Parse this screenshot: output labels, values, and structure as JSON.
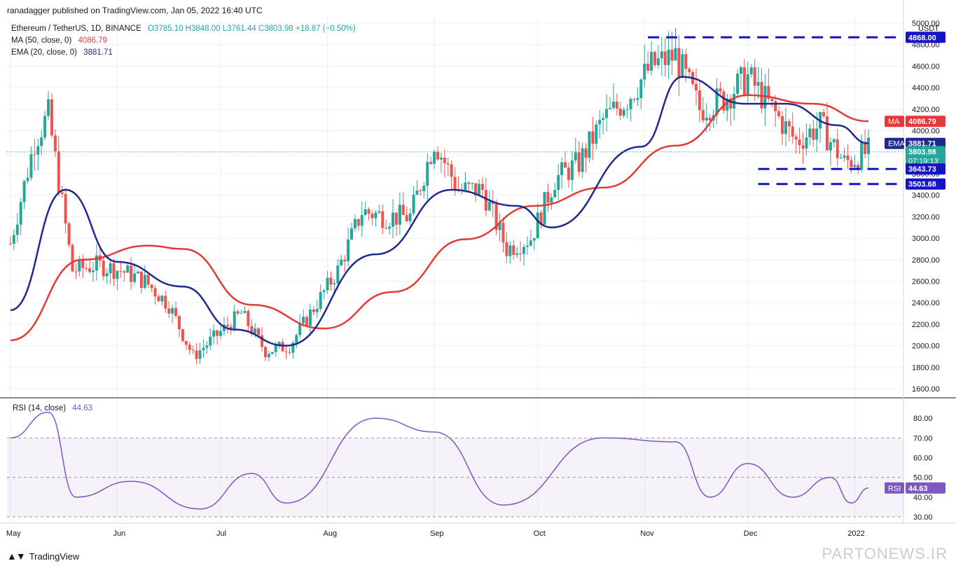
{
  "header": {
    "publisher_line": "ranadagger published on TradingView.com, Jan 05, 2022 16:40 UTC"
  },
  "legend": {
    "symbol": "Ethereum / TetherUS, 1D, BINANCE",
    "ohlc": "O3785.10  H3848.00  L3761.44  C3803.98  +18.87 (+0.50%)",
    "ma_label": "MA (50, close, 0)",
    "ma_value": "4086.79",
    "ema_label": "EMA (20, close, 0)",
    "ema_value": "3881.71",
    "rsi_label": "RSI (14, close)",
    "rsi_value": "44.63"
  },
  "price_axis": {
    "unit": "USDT",
    "ticks": [
      "5000.00",
      "4800.00",
      "4600.00",
      "4400.00",
      "4200.00",
      "4000.00",
      "3800.00",
      "3600.00",
      "3400.00",
      "3200.00",
      "3000.00",
      "2800.00",
      "2600.00",
      "2400.00",
      "2200.00",
      "2000.00",
      "1800.00",
      "1600.00"
    ]
  },
  "rsi_axis": {
    "ticks": [
      "80.00",
      "70.00",
      "60.00",
      "50.00",
      "40.00",
      "30.00"
    ]
  },
  "time_axis": {
    "ticks": [
      "May",
      "Jun",
      "Jul",
      "Aug",
      "Sep",
      "Oct",
      "Nov",
      "Dec",
      "2022"
    ]
  },
  "price_tags": {
    "top_resistance": "4868.00",
    "ma_tag": "MA",
    "ma_value": "4086.79",
    "ema_tag": "EMA",
    "ema_value": "3881.71",
    "last_price": "3803.98",
    "countdown": "07:19:13",
    "support_1": "3643.73",
    "support_2": "3503.68",
    "rsi_tag": "RSI",
    "rsi_value": "44.63"
  },
  "colors": {
    "up": "#26a69a",
    "down": "#ef5350",
    "ema": "#1e2a8c",
    "ma": "#e53935",
    "rsi": "#7e57c2",
    "level": "#1515c8",
    "price_tag": "#26a69a"
  },
  "chart_data": {
    "type": "candlestick",
    "symbol": "ETH/USDT",
    "interval": "1D",
    "y_range": [
      1600,
      5000
    ],
    "rsi_range": [
      30,
      80
    ],
    "levels": [
      4868.0,
      3643.73,
      3503.68
    ],
    "closes_weekly_approx": [
      {
        "date": "2021-05-01",
        "close": 2950
      },
      {
        "date": "2021-05-08",
        "close": 3900
      },
      {
        "date": "2021-05-12",
        "close": 4150
      },
      {
        "date": "2021-05-19",
        "close": 2700
      },
      {
        "date": "2021-05-26",
        "close": 2750
      },
      {
        "date": "2021-06-02",
        "close": 2700
      },
      {
        "date": "2021-06-09",
        "close": 2600
      },
      {
        "date": "2021-06-16",
        "close": 2380
      },
      {
        "date": "2021-06-23",
        "close": 1900
      },
      {
        "date": "2021-06-30",
        "close": 2100
      },
      {
        "date": "2021-07-07",
        "close": 2300
      },
      {
        "date": "2021-07-14",
        "close": 1950
      },
      {
        "date": "2021-07-21",
        "close": 2000
      },
      {
        "date": "2021-07-28",
        "close": 2350
      },
      {
        "date": "2021-08-04",
        "close": 2700
      },
      {
        "date": "2021-08-11",
        "close": 3250
      },
      {
        "date": "2021-08-18",
        "close": 3200
      },
      {
        "date": "2021-08-25",
        "close": 3200
      },
      {
        "date": "2021-09-01",
        "close": 3900
      },
      {
        "date": "2021-09-08",
        "close": 3450
      },
      {
        "date": "2021-09-15",
        "close": 3450
      },
      {
        "date": "2021-09-22",
        "close": 2900
      },
      {
        "date": "2021-09-29",
        "close": 3000
      },
      {
        "date": "2021-10-06",
        "close": 3550
      },
      {
        "date": "2021-10-13",
        "close": 3700
      },
      {
        "date": "2021-10-20",
        "close": 4100
      },
      {
        "date": "2021-10-27",
        "close": 4300
      },
      {
        "date": "2021-11-03",
        "close": 4600
      },
      {
        "date": "2021-11-10",
        "close": 4700
      },
      {
        "date": "2021-11-17",
        "close": 4200
      },
      {
        "date": "2021-11-24",
        "close": 4300
      },
      {
        "date": "2021-12-01",
        "close": 4500
      },
      {
        "date": "2021-12-08",
        "close": 4200
      },
      {
        "date": "2021-12-15",
        "close": 3900
      },
      {
        "date": "2021-12-22",
        "close": 4050
      },
      {
        "date": "2021-12-29",
        "close": 3700
      },
      {
        "date": "2022-01-05",
        "close": 3804
      }
    ],
    "ma50_approx": [
      {
        "date": "2021-05-01",
        "v": 2050
      },
      {
        "date": "2021-05-22",
        "v": 2800
      },
      {
        "date": "2021-06-10",
        "v": 2930
      },
      {
        "date": "2021-06-20",
        "v": 2900
      },
      {
        "date": "2021-07-10",
        "v": 2380
      },
      {
        "date": "2021-07-31",
        "v": 2160
      },
      {
        "date": "2021-08-20",
        "v": 2500
      },
      {
        "date": "2021-09-10",
        "v": 2990
      },
      {
        "date": "2021-09-30",
        "v": 3300
      },
      {
        "date": "2021-10-20",
        "v": 3470
      },
      {
        "date": "2021-11-10",
        "v": 3860
      },
      {
        "date": "2021-12-01",
        "v": 4330
      },
      {
        "date": "2021-12-20",
        "v": 4250
      },
      {
        "date": "2022-01-05",
        "v": 4087
      }
    ],
    "ema20_approx": [
      {
        "date": "2021-05-01",
        "v": 2330
      },
      {
        "date": "2021-05-17",
        "v": 3450
      },
      {
        "date": "2021-06-01",
        "v": 2780
      },
      {
        "date": "2021-06-20",
        "v": 2550
      },
      {
        "date": "2021-07-05",
        "v": 2150
      },
      {
        "date": "2021-07-20",
        "v": 2000
      },
      {
        "date": "2021-08-15",
        "v": 2850
      },
      {
        "date": "2021-09-06",
        "v": 3450
      },
      {
        "date": "2021-09-25",
        "v": 3300
      },
      {
        "date": "2021-10-05",
        "v": 3100
      },
      {
        "date": "2021-10-31",
        "v": 3850
      },
      {
        "date": "2021-11-12",
        "v": 4500
      },
      {
        "date": "2021-11-30",
        "v": 4250
      },
      {
        "date": "2021-12-12",
        "v": 4250
      },
      {
        "date": "2021-12-27",
        "v": 4050
      },
      {
        "date": "2022-01-05",
        "v": 3882
      }
    ],
    "rsi_approx": [
      {
        "date": "2021-05-01",
        "v": 70
      },
      {
        "date": "2021-05-12",
        "v": 83
      },
      {
        "date": "2021-05-20",
        "v": 40
      },
      {
        "date": "2021-06-05",
        "v": 48
      },
      {
        "date": "2021-06-25",
        "v": 34
      },
      {
        "date": "2021-07-10",
        "v": 52
      },
      {
        "date": "2021-07-20",
        "v": 37
      },
      {
        "date": "2021-08-15",
        "v": 80
      },
      {
        "date": "2021-09-01",
        "v": 73
      },
      {
        "date": "2021-09-21",
        "v": 36
      },
      {
        "date": "2021-10-20",
        "v": 70
      },
      {
        "date": "2021-11-10",
        "v": 68
      },
      {
        "date": "2021-11-20",
        "v": 40
      },
      {
        "date": "2021-12-01",
        "v": 57
      },
      {
        "date": "2021-12-14",
        "v": 40
      },
      {
        "date": "2021-12-25",
        "v": 50
      },
      {
        "date": "2021-12-31",
        "v": 37
      },
      {
        "date": "2022-01-05",
        "v": 44.63
      }
    ]
  },
  "footer": {
    "brand": "TradingView",
    "watermark": "PARTONEWS.IR"
  }
}
